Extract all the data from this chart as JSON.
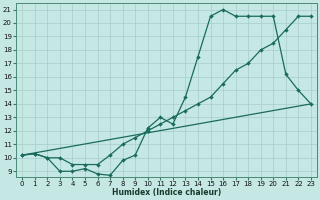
{
  "xlabel": "Humidex (Indice chaleur)",
  "bg_color": "#c5e8e4",
  "line_color": "#1a6b5a",
  "grid_color": "#a8ceca",
  "xlim_min": -0.5,
  "xlim_max": 23.5,
  "ylim_min": 8.6,
  "ylim_max": 21.5,
  "xticks": [
    0,
    1,
    2,
    3,
    4,
    5,
    6,
    7,
    8,
    9,
    10,
    11,
    12,
    13,
    14,
    15,
    16,
    17,
    18,
    19,
    20,
    21,
    22,
    23
  ],
  "yticks": [
    9,
    10,
    11,
    12,
    13,
    14,
    15,
    16,
    17,
    18,
    19,
    20,
    21
  ],
  "line1_x": [
    0,
    1,
    2,
    3,
    4,
    5,
    6,
    7,
    8,
    9,
    10,
    11,
    12,
    13,
    14,
    15,
    16,
    17,
    18,
    19,
    20,
    21,
    22,
    23
  ],
  "line1_y": [
    10.2,
    10.3,
    10.0,
    9.0,
    9.0,
    9.2,
    8.8,
    8.7,
    9.8,
    10.2,
    12.2,
    13.0,
    12.5,
    14.5,
    17.5,
    20.5,
    21.0,
    20.5,
    20.5,
    20.5,
    20.5,
    16.2,
    15.0,
    14.0
  ],
  "line2_x": [
    0,
    1,
    2,
    3,
    4,
    5,
    6,
    7,
    8,
    9,
    10,
    11,
    12,
    13,
    14,
    15,
    16,
    17,
    18,
    19,
    20,
    21,
    22,
    23
  ],
  "line2_y": [
    10.2,
    10.3,
    10.0,
    10.0,
    9.5,
    9.5,
    9.5,
    10.2,
    11.0,
    11.5,
    12.0,
    12.5,
    13.0,
    13.5,
    14.0,
    14.5,
    15.5,
    16.5,
    17.0,
    18.0,
    18.5,
    19.5,
    20.5,
    20.5
  ],
  "line3_x": [
    0,
    23
  ],
  "line3_y": [
    10.2,
    14.0
  ],
  "markersize": 2.0,
  "linewidth": 0.9,
  "tick_fontsize": 5.0,
  "xlabel_fontsize": 5.5
}
